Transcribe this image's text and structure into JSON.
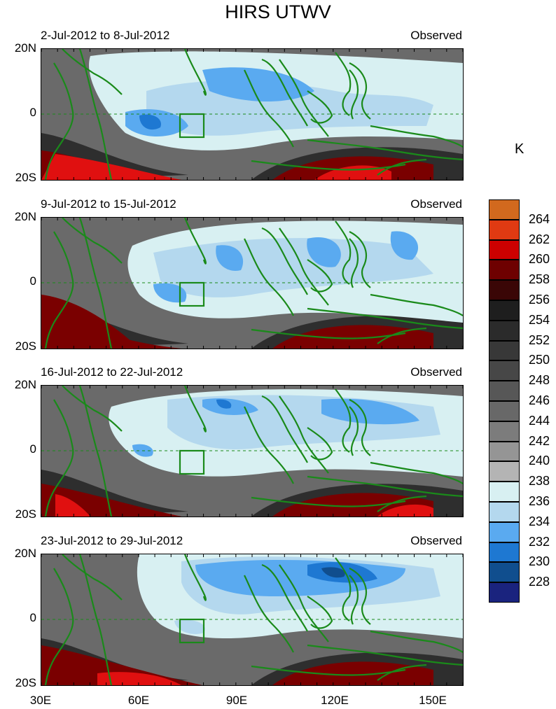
{
  "title": "HIRS UTWV",
  "panels": [
    {
      "date_range": "2-Jul-2012 to 8-Jul-2012",
      "label": "Observed"
    },
    {
      "date_range": "9-Jul-2012 to 15-Jul-2012",
      "label": "Observed"
    },
    {
      "date_range": "16-Jul-2012 to 22-Jul-2012",
      "label": "Observed"
    },
    {
      "date_range": "23-Jul-2012 to 29-Jul-2012",
      "label": "Observed"
    }
  ],
  "y_axis": {
    "top": "20N",
    "middle": "0",
    "bottom": "20S"
  },
  "x_axis": {
    "ticks": [
      "30E",
      "60E",
      "90E",
      "120E",
      "150E"
    ]
  },
  "colorbar": {
    "unit": "K",
    "labels": [
      "264",
      "262",
      "260",
      "258",
      "256",
      "254",
      "252",
      "250",
      "248",
      "246",
      "244",
      "242",
      "240",
      "238",
      "236",
      "234",
      "232",
      "230",
      "228"
    ],
    "colors": [
      "#d2691e",
      "#e03a12",
      "#cc0000",
      "#6e0000",
      "#3a0606",
      "#1e1e1e",
      "#2b2b2b",
      "#383838",
      "#474747",
      "#575757",
      "#686868",
      "#7c7c7c",
      "#959595",
      "#b4b4b4",
      "#d8f0f2",
      "#b4d8ee",
      "#5aaaf0",
      "#1e78d2",
      "#104e8e",
      "#1a237e"
    ]
  },
  "map_colors": {
    "coast": "#1a8a1a",
    "box": "#1a8a1a",
    "warm": "#7a0000",
    "hot": "#e01010",
    "dark": "#2e2e2e",
    "mid": "#6a6a6a",
    "light_gray": "#b0b0b0",
    "cyan": "#d8f0f2",
    "light_blue": "#b4d8ee",
    "blue": "#5aaaf0",
    "deep_blue": "#1e78d2",
    "navy": "#104e8e"
  }
}
